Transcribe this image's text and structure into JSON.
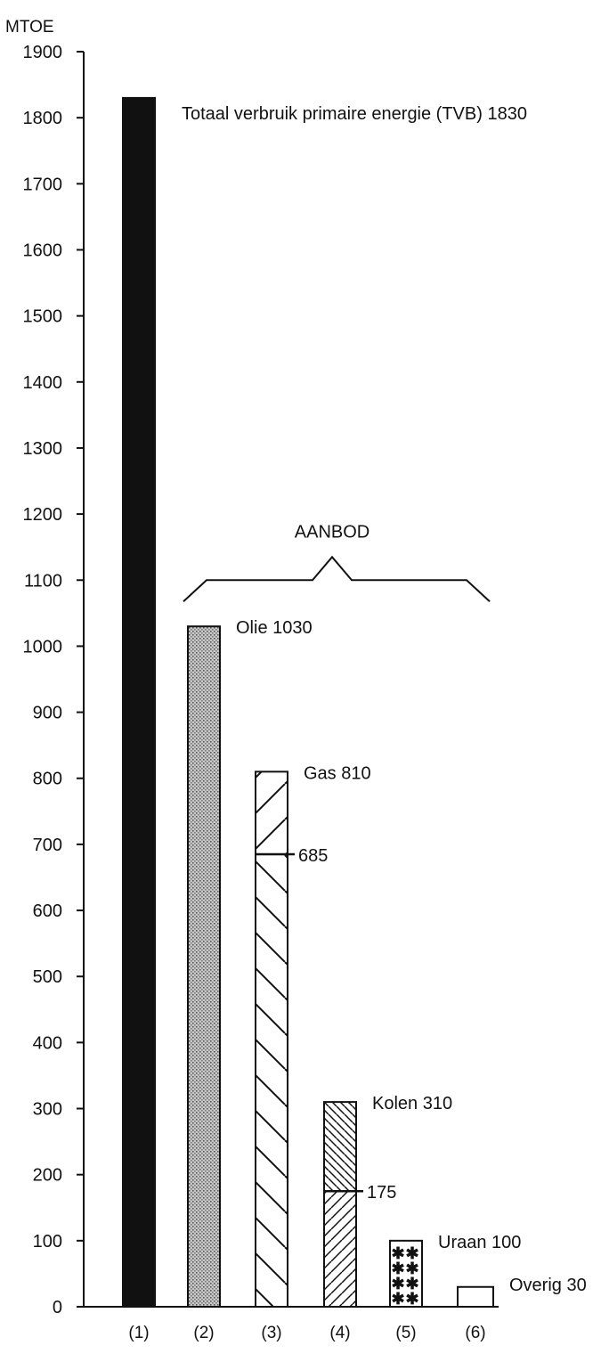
{
  "chart_data": {
    "type": "bar",
    "ylabel": "MTOE",
    "ylim": [
      0,
      1900
    ],
    "yticks": [
      0,
      100,
      200,
      300,
      400,
      500,
      600,
      700,
      800,
      900,
      1000,
      1100,
      1200,
      1300,
      1400,
      1500,
      1600,
      1700,
      1800,
      1900
    ],
    "categories": [
      "(1)",
      "(2)",
      "(3)",
      "(4)",
      "(5)",
      "(6)"
    ],
    "bars": [
      {
        "category": "(1)",
        "name": "Totaal verbruik primaire energie (TVB)",
        "value": 1830,
        "label": "Totaal verbruik primaire energie (TVB) 1830",
        "fill": "solid"
      },
      {
        "category": "(2)",
        "name": "Olie",
        "value": 1030,
        "label": "Olie 1030",
        "fill": "dots"
      },
      {
        "category": "(3)",
        "name": "Gas",
        "value": 810,
        "label": "Gas 810",
        "fill": "hatch-back",
        "split_value": 685,
        "split_label": "685",
        "upper_fill": "hatch-fwd"
      },
      {
        "category": "(4)",
        "name": "Kolen",
        "value": 310,
        "label": "Kolen 310",
        "fill": "hatch-fine-fwd",
        "split_value": 175,
        "split_label": "175",
        "upper_fill": "hatch-fine-back"
      },
      {
        "category": "(5)",
        "name": "Uraan",
        "value": 100,
        "label": "Uraan 100",
        "fill": "asterisks"
      },
      {
        "category": "(6)",
        "name": "Overig",
        "value": 30,
        "label": "Overig 30",
        "fill": "none"
      }
    ],
    "annotations": [
      {
        "text": "AANBOD",
        "spans": [
          "(2)",
          "(6)"
        ],
        "shape": "brace"
      }
    ],
    "grid": false,
    "legend": "none"
  },
  "colors": {
    "ink": "#111111",
    "background": "#ffffff",
    "olie_fill": "#b9b9b9"
  }
}
